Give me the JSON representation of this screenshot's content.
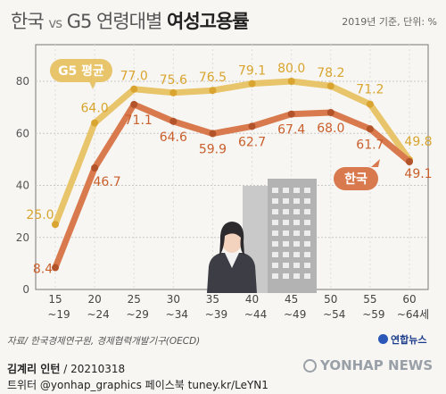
{
  "title": {
    "part1": "한국",
    "vs": "vs",
    "part2": "G5 연령대별",
    "bold": "여성고용률"
  },
  "note": "2019년 기준, 단위: %",
  "source": "자료/ 한국경제연구원, 경제협력개발기구(OECD)",
  "credit": {
    "name": "김계리 인턴",
    "date": "/ 20210318",
    "line2": "트위터 @yonhap_graphics  페이스북 tuney.kr/LeYN1"
  },
  "brand": {
    "small": "연합뉴스",
    "big": "YONHAP NEWS"
  },
  "colors": {
    "g5": "#e8c46a",
    "korea": "#d97a4e",
    "g5_label_text": "#ffffff"
  },
  "chart_data": {
    "type": "line",
    "categories": [
      "15~19",
      "20~24",
      "25~29",
      "30~34",
      "35~39",
      "40~44",
      "45~49",
      "50~54",
      "55~59",
      "60~64세"
    ],
    "x_tick_top": [
      "15",
      "20",
      "25",
      "30",
      "35",
      "40",
      "45",
      "50",
      "55",
      "60"
    ],
    "x_tick_bottom": [
      "~19",
      "~24",
      "~29",
      "~34",
      "~39",
      "~44",
      "~49",
      "~54",
      "~59",
      "~64세"
    ],
    "y_ticks": [
      0,
      20,
      40,
      60,
      80
    ],
    "ylim": [
      0,
      85
    ],
    "series": [
      {
        "name": "G5 평균",
        "values": [
          25.0,
          64.0,
          77.0,
          75.6,
          76.5,
          79.1,
          80.0,
          78.2,
          71.2,
          49.8
        ]
      },
      {
        "name": "한국",
        "values": [
          8.4,
          46.7,
          71.1,
          64.6,
          59.9,
          62.7,
          67.4,
          68.0,
          61.7,
          49.1
        ]
      }
    ]
  }
}
